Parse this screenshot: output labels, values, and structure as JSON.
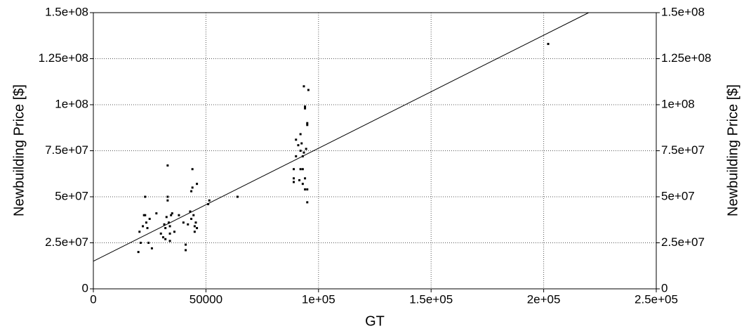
{
  "chart_data": {
    "type": "scatter",
    "x_label": "GT",
    "y_label": "Newbuilding Price [$]",
    "xlim": [
      0,
      250000
    ],
    "ylim": [
      0,
      150000000
    ],
    "xticks": [
      0,
      50000,
      {
        "value": 100000,
        "label": "1e+05"
      },
      {
        "value": 150000,
        "label": "1.5e+05"
      },
      {
        "value": 200000,
        "label": "2e+05"
      },
      {
        "value": 250000,
        "label": "2.5e+05"
      }
    ],
    "yticks": [
      0,
      {
        "value": 25000000,
        "label": "2.5e+07"
      },
      {
        "value": 50000000,
        "label": "5e+07"
      },
      {
        "value": 75000000,
        "label": "7.5e+07"
      },
      {
        "value": 100000000,
        "label": "1e+08"
      },
      {
        "value": 125000000,
        "label": "1.25e+08"
      },
      {
        "value": 150000000,
        "label": "1.5e+08"
      }
    ],
    "grid": true,
    "series": [
      {
        "type": "scatter",
        "color": "#000000",
        "x": [
          20000,
          20500,
          21000,
          22000,
          22500,
          23000,
          23000,
          23500,
          24000,
          24500,
          25000,
          26000,
          28000,
          30000,
          31000,
          31500,
          32000,
          32000,
          32500,
          33000,
          33000,
          33000,
          33500,
          34000,
          34000,
          34000,
          34500,
          35000,
          36000,
          38000,
          40000,
          41000,
          41000,
          42000,
          43000,
          43500,
          43500,
          44000,
          44000,
          44500,
          45000,
          45000,
          45500,
          46000,
          46000,
          51000,
          51500,
          64000,
          89000,
          89000,
          89000,
          90000,
          90000,
          91000,
          91500,
          92000,
          92000,
          92000,
          92500,
          93000,
          93000,
          93000,
          93500,
          93500,
          94000,
          94000,
          94000,
          94000,
          94500,
          95000,
          95000,
          95000,
          95000,
          95500,
          202000
        ],
        "values": [
          20000000,
          31000000,
          25000000,
          34000000,
          40000000,
          40000000,
          50000000,
          36000000,
          33000000,
          25000000,
          38000000,
          22000000,
          41000000,
          30000000,
          28000000,
          35000000,
          33000000,
          27000000,
          39000000,
          48000000,
          50000000,
          67000000,
          36000000,
          34000000,
          30000000,
          26000000,
          40000000,
          41000000,
          31000000,
          40000000,
          36000000,
          24000000,
          21000000,
          35000000,
          42000000,
          38000000,
          53000000,
          55000000,
          65000000,
          40000000,
          34000000,
          31000000,
          36000000,
          57000000,
          33000000,
          46000000,
          48000000,
          50000000,
          58000000,
          60000000,
          65000000,
          72000000,
          81000000,
          78000000,
          59000000,
          84000000,
          65000000,
          75000000,
          79000000,
          57000000,
          72000000,
          65000000,
          110000000,
          74000000,
          98000000,
          99000000,
          54000000,
          60000000,
          76000000,
          89000000,
          90000000,
          47000000,
          54000000,
          108000000,
          133000000
        ]
      },
      {
        "type": "line",
        "color": "#000000",
        "x": [
          0,
          220000
        ],
        "values": [
          15000000,
          150000000
        ]
      }
    ]
  }
}
